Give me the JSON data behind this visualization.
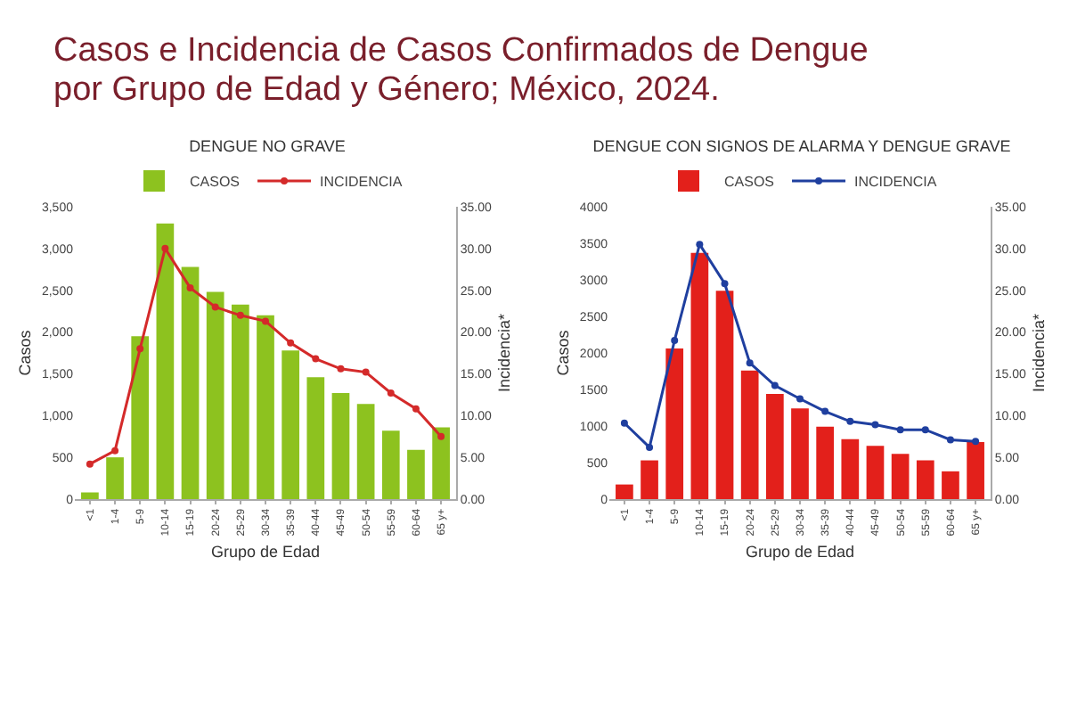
{
  "chart_data": [
    {
      "type": "bar",
      "title": "Casos e Incidencia de Casos Confirmados de Dengue por Grupo de Edad y Género; México, 2024.",
      "subtitle": "DENGUE NO GRAVE",
      "xlabel": "Grupo de Edad",
      "ylabel": "Casos",
      "y2label": "Incidencia*",
      "categories": [
        "<1",
        "1-4",
        "5-9",
        "10-14",
        "15-19",
        "20-24",
        "25-29",
        "30-34",
        "35-39",
        "40-44",
        "45-49",
        "50-54",
        "55-59",
        "60-64",
        "65 y+"
      ],
      "series": [
        {
          "name": "CASOS",
          "color": "#8dc21f",
          "values": [
            80,
            500,
            1950,
            3300,
            2780,
            2480,
            2330,
            2200,
            1780,
            1460,
            1270,
            1140,
            820,
            590,
            860
          ]
        },
        {
          "name": "INCIDENCIA",
          "type": "line",
          "axis": "y2",
          "color": "#d42a2a",
          "values": [
            4.2,
            5.8,
            18,
            30,
            25.3,
            23,
            22,
            21.3,
            18.7,
            16.8,
            15.6,
            15.2,
            12.7,
            10.8,
            7.5
          ]
        }
      ],
      "ylim": [
        0,
        3500
      ],
      "yticks": [
        0,
        500,
        {
          "value": 1000,
          "label": "1,000"
        },
        {
          "value": 1500,
          "label": "1,500"
        },
        {
          "value": 2000,
          "label": "2,000"
        },
        {
          "value": 2500,
          "label": "2,500"
        },
        {
          "value": 3000,
          "label": "3,000"
        },
        {
          "value": 3500,
          "label": "3,500"
        }
      ],
      "y2lim": [
        0,
        35
      ],
      "y2ticks": [
        {
          "value": 0,
          "label": "0.00"
        },
        {
          "value": 5,
          "label": "5.00"
        },
        {
          "value": 10,
          "label": "10.00"
        },
        {
          "value": 15,
          "label": "15.00"
        },
        {
          "value": 20,
          "label": "20.00"
        },
        {
          "value": 25,
          "label": "25.00"
        },
        {
          "value": 30,
          "label": "30.00"
        },
        {
          "value": 35,
          "label": "35.00"
        }
      ],
      "legend": "top",
      "marker": "circle"
    },
    {
      "type": "bar",
      "title": "DENGUE CON SIGNOS DE ALARMA Y DENGUE GRAVE",
      "xlabel": "Grupo de Edad",
      "ylabel": "Casos",
      "y2label": "Incidencia*",
      "categories": [
        "<1",
        "1-4",
        "5-9",
        "10-14",
        "15-19",
        "20-24",
        "25-29",
        "30-34",
        "35-39",
        "40-44",
        "45-49",
        "50-54",
        "55-59",
        "60-64",
        "65 y+"
      ],
      "series": [
        {
          "name": "CASOS",
          "color": "#e3201b",
          "values": [
            200,
            530,
            2060,
            3370,
            2850,
            1760,
            1440,
            1240,
            990,
            820,
            730,
            620,
            530,
            380,
            780
          ]
        },
        {
          "name": "INCIDENCIA",
          "type": "line",
          "axis": "y2",
          "color": "#1f3f9f",
          "values": [
            9.1,
            6.2,
            19,
            30.5,
            25.8,
            16.3,
            13.6,
            12,
            10.5,
            9.3,
            8.9,
            8.3,
            8.3,
            7.1,
            6.9
          ]
        }
      ],
      "ylim": [
        0,
        4000
      ],
      "yticks": [
        0,
        500,
        1000,
        1500,
        2000,
        2500,
        3000,
        3500,
        4000
      ],
      "y2lim": [
        0,
        35
      ],
      "y2ticks": [
        {
          "value": 0,
          "label": "0.00"
        },
        {
          "value": 5,
          "label": "5.00"
        },
        {
          "value": 10,
          "label": "10.00"
        },
        {
          "value": 15,
          "label": "15.00"
        },
        {
          "value": 20,
          "label": "20.00"
        },
        {
          "value": 25,
          "label": "25.00"
        },
        {
          "value": 30,
          "label": "30.00"
        },
        {
          "value": 35,
          "label": "35.00"
        }
      ],
      "legend": "top",
      "marker": "circle"
    }
  ]
}
